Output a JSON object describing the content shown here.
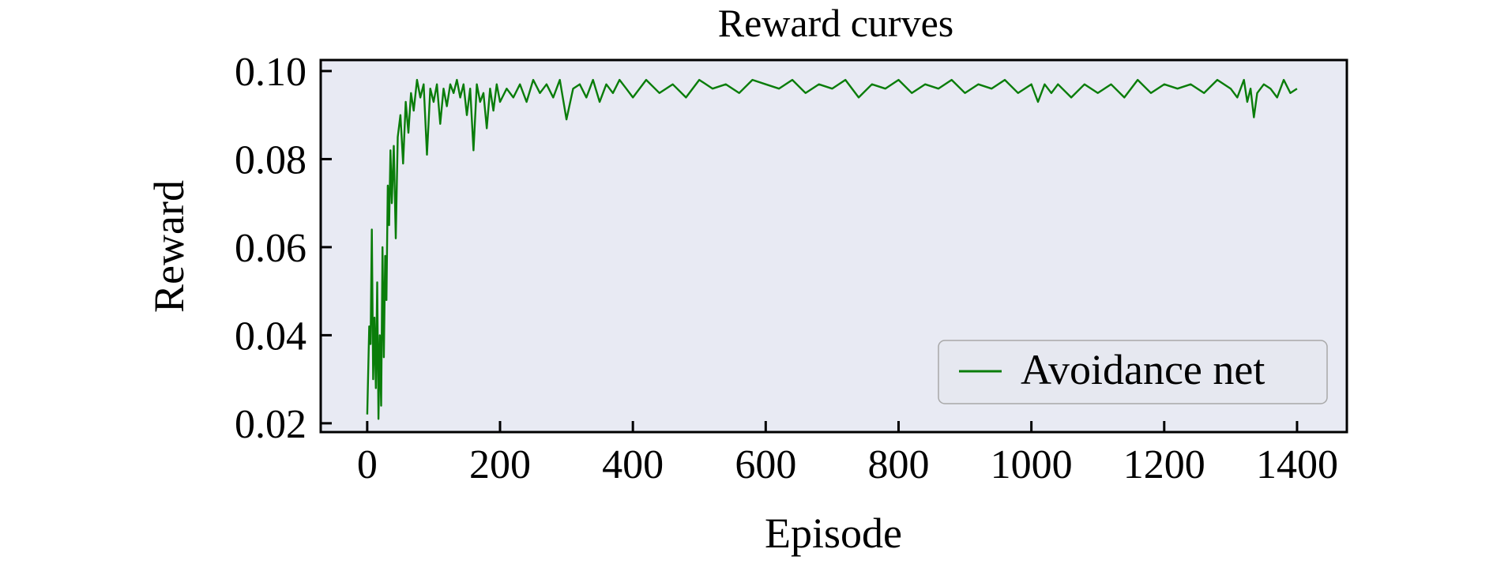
{
  "chart_data": {
    "type": "line",
    "title": "Reward curves",
    "xlabel": "Episode",
    "ylabel": "Reward",
    "xlim": [
      -70,
      1475
    ],
    "ylim": [
      0.018,
      0.1025
    ],
    "xticks": [
      0,
      200,
      400,
      600,
      800,
      1000,
      1200,
      1400
    ],
    "xtick_labels": [
      "0",
      "200",
      "400",
      "600",
      "800",
      "1000",
      "1200",
      "1400"
    ],
    "yticks": [
      0.02,
      0.04,
      0.06,
      0.08,
      0.1
    ],
    "ytick_labels": [
      "0.02",
      "0.04",
      "0.06",
      "0.08",
      "0.10"
    ],
    "grid": false,
    "legend_position": "lower-right",
    "series": [
      {
        "name": "Avoidance net",
        "color": "#0a7d0a",
        "x": [
          0,
          3,
          5,
          7,
          9,
          11,
          13,
          15,
          17,
          19,
          21,
          23,
          25,
          27,
          29,
          31,
          33,
          35,
          37,
          40,
          43,
          46,
          50,
          54,
          58,
          62,
          66,
          70,
          75,
          80,
          85,
          90,
          95,
          100,
          105,
          110,
          115,
          120,
          125,
          130,
          135,
          140,
          145,
          150,
          155,
          160,
          165,
          170,
          175,
          180,
          185,
          190,
          195,
          200,
          210,
          220,
          230,
          240,
          250,
          260,
          270,
          280,
          290,
          300,
          310,
          320,
          330,
          340,
          350,
          360,
          370,
          380,
          390,
          400,
          420,
          440,
          460,
          480,
          500,
          520,
          540,
          560,
          580,
          600,
          620,
          640,
          660,
          680,
          700,
          720,
          740,
          760,
          780,
          800,
          820,
          840,
          860,
          880,
          900,
          920,
          940,
          960,
          980,
          1000,
          1010,
          1020,
          1030,
          1040,
          1060,
          1080,
          1100,
          1120,
          1140,
          1160,
          1180,
          1200,
          1220,
          1240,
          1260,
          1280,
          1300,
          1310,
          1320,
          1325,
          1330,
          1335,
          1340,
          1350,
          1360,
          1370,
          1380,
          1390,
          1400
        ],
        "values": [
          0.022,
          0.042,
          0.038,
          0.064,
          0.03,
          0.044,
          0.028,
          0.052,
          0.021,
          0.04,
          0.024,
          0.06,
          0.035,
          0.058,
          0.048,
          0.074,
          0.065,
          0.082,
          0.07,
          0.083,
          0.062,
          0.085,
          0.09,
          0.079,
          0.093,
          0.086,
          0.095,
          0.091,
          0.098,
          0.094,
          0.097,
          0.081,
          0.096,
          0.093,
          0.097,
          0.088,
          0.096,
          0.092,
          0.097,
          0.095,
          0.098,
          0.094,
          0.097,
          0.09,
          0.096,
          0.082,
          0.097,
          0.093,
          0.095,
          0.087,
          0.096,
          0.091,
          0.097,
          0.093,
          0.096,
          0.094,
          0.097,
          0.093,
          0.098,
          0.095,
          0.097,
          0.094,
          0.098,
          0.089,
          0.096,
          0.097,
          0.094,
          0.098,
          0.093,
          0.097,
          0.095,
          0.098,
          0.096,
          0.094,
          0.098,
          0.095,
          0.097,
          0.094,
          0.098,
          0.096,
          0.097,
          0.095,
          0.098,
          0.097,
          0.096,
          0.098,
          0.095,
          0.097,
          0.096,
          0.098,
          0.094,
          0.097,
          0.096,
          0.098,
          0.095,
          0.097,
          0.096,
          0.098,
          0.095,
          0.097,
          0.096,
          0.098,
          0.095,
          0.097,
          0.093,
          0.097,
          0.095,
          0.097,
          0.094,
          0.097,
          0.095,
          0.097,
          0.094,
          0.098,
          0.095,
          0.097,
          0.096,
          0.097,
          0.095,
          0.098,
          0.096,
          0.094,
          0.098,
          0.093,
          0.096,
          0.0895,
          0.095,
          0.097,
          0.096,
          0.094,
          0.098,
          0.095,
          0.096
        ]
      }
    ]
  }
}
